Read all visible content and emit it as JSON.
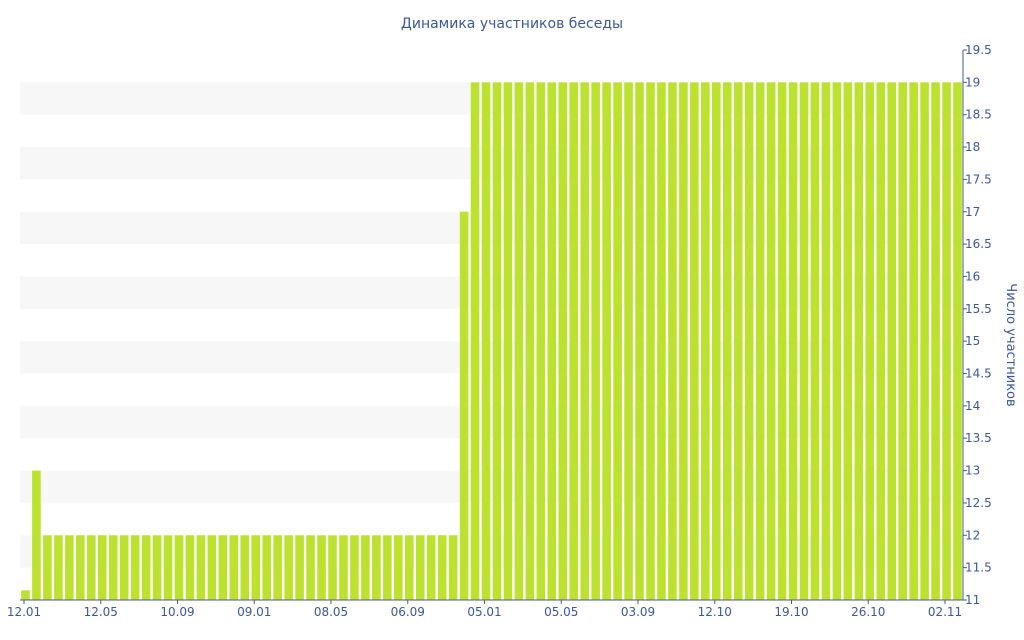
{
  "colors": {
    "bar": "#bde12f",
    "axis": "#4a5a8a",
    "text": "#3b5998",
    "band": "#f7f7f7",
    "background": "#ffffff"
  },
  "chart_data": {
    "type": "bar",
    "title": "Динамика участников беседы",
    "xlabel": "",
    "ylabel": "Число участников",
    "ylim": [
      11,
      19.5
    ],
    "y_axis_position": "right",
    "y_ticks": [
      "11",
      "11.5",
      "12",
      "12.5",
      "13",
      "13.5",
      "14",
      "14.5",
      "15",
      "15.5",
      "16",
      "16.5",
      "17",
      "17.5",
      "18",
      "18.5",
      "19",
      "19.5"
    ],
    "x_tick_labels": [
      "12.01",
      "12.05",
      "10.09",
      "09.01",
      "08.05",
      "06.09",
      "05.01",
      "05.05",
      "03.09",
      "12.10",
      "19.10",
      "26.10",
      "02.11"
    ],
    "grid": "alternating horizontal bands",
    "legend": "none",
    "values": [
      11.15,
      13,
      12,
      12,
      12,
      12,
      12,
      12,
      12,
      12,
      12,
      12,
      12,
      12,
      12,
      12,
      12,
      12,
      12,
      12,
      12,
      12,
      12,
      12,
      12,
      12,
      12,
      12,
      12,
      12,
      12,
      12,
      12,
      12,
      12,
      12,
      12,
      12,
      12,
      12,
      17,
      19,
      19,
      19,
      19,
      19,
      19,
      19,
      19,
      19,
      19,
      19,
      19,
      19,
      19,
      19,
      19,
      19,
      19,
      19,
      19,
      19,
      19,
      19,
      19,
      19,
      19,
      19,
      19,
      19,
      19,
      19,
      19,
      19,
      19,
      19,
      19,
      19,
      19,
      19,
      19,
      19,
      19,
      19,
      19,
      19
    ]
  }
}
